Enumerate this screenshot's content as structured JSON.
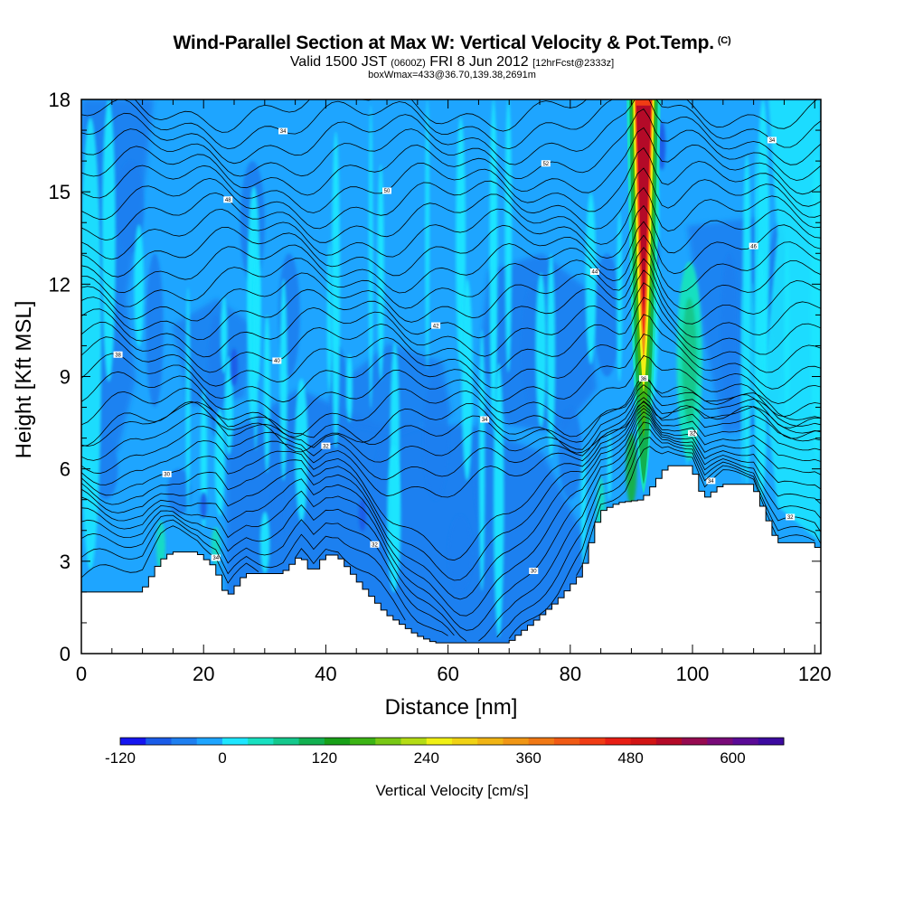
{
  "header": {
    "title": "Wind-Parallel Section at Max W: Vertical Velocity & Pot.Temp.",
    "title_mark": "(C)",
    "valid_prefix": "Valid 1500 JST",
    "valid_utc": "(0600Z)",
    "valid_date": "FRI 8 Jun 2012",
    "forecast": "[12hrFcst@2333z]",
    "box_info": "boxWmax=433@36.70,139.38,2691m"
  },
  "chart_data": {
    "type": "heatmap",
    "xlabel": "Distance [nm]",
    "ylabel": "Height [Kft MSL]",
    "xlim": [
      0,
      121
    ],
    "ylim": [
      0,
      18
    ],
    "x_ticks": [
      0,
      20,
      40,
      60,
      80,
      100,
      120
    ],
    "y_ticks": [
      0,
      3,
      6,
      9,
      12,
      15,
      18
    ],
    "colorbar": {
      "title": "Vertical Velocity [cm/s]",
      "tick_labels": [
        "-120",
        "0",
        "120",
        "240",
        "360",
        "480",
        "600"
      ],
      "tick_values": [
        -120,
        0,
        120,
        240,
        360,
        480,
        600
      ],
      "bin_edges": [
        -120,
        -90,
        -60,
        -30,
        0,
        30,
        60,
        90,
        120,
        150,
        180,
        210,
        240,
        270,
        300,
        330,
        360,
        390,
        420,
        450,
        480,
        510,
        540,
        570,
        600,
        630,
        660
      ],
      "colors": [
        "#1515f0",
        "#1a5ce8",
        "#1e7ff0",
        "#1ea5ff",
        "#1ee6ff",
        "#18e0c0",
        "#14c88c",
        "#12b050",
        "#18a018",
        "#3cb414",
        "#78c814",
        "#b4dc14",
        "#f0f014",
        "#f0d214",
        "#f0b414",
        "#f09614",
        "#f07814",
        "#f05a14",
        "#f03c14",
        "#e81e14",
        "#d21414",
        "#b40a28",
        "#960a50",
        "#780a78",
        "#5a0a96",
        "#3c0aa0"
      ]
    },
    "terrain_top_kft": [
      {
        "x": 0,
        "z": 2.0
      },
      {
        "x": 10,
        "z": 2.0
      },
      {
        "x": 13,
        "z": 3.0
      },
      {
        "x": 15,
        "z": 3.3
      },
      {
        "x": 19,
        "z": 3.3
      },
      {
        "x": 22,
        "z": 2.8
      },
      {
        "x": 24,
        "z": 1.8
      },
      {
        "x": 27,
        "z": 2.6
      },
      {
        "x": 33,
        "z": 2.6
      },
      {
        "x": 36,
        "z": 3.2
      },
      {
        "x": 38,
        "z": 2.6
      },
      {
        "x": 40,
        "z": 3.2
      },
      {
        "x": 42,
        "z": 3.2
      },
      {
        "x": 46,
        "z": 2.2
      },
      {
        "x": 50,
        "z": 1.3
      },
      {
        "x": 55,
        "z": 0.6
      },
      {
        "x": 58,
        "z": 0.35
      },
      {
        "x": 70,
        "z": 0.35
      },
      {
        "x": 74,
        "z": 1.0
      },
      {
        "x": 78,
        "z": 1.7
      },
      {
        "x": 82,
        "z": 2.6
      },
      {
        "x": 85,
        "z": 4.6
      },
      {
        "x": 88,
        "z": 4.9
      },
      {
        "x": 92,
        "z": 5.0
      },
      {
        "x": 96,
        "z": 6.1
      },
      {
        "x": 100,
        "z": 6.1
      },
      {
        "x": 102,
        "z": 5.0
      },
      {
        "x": 105,
        "z": 5.5
      },
      {
        "x": 110,
        "z": 5.5
      },
      {
        "x": 114,
        "z": 3.6
      },
      {
        "x": 120,
        "z": 3.6
      },
      {
        "x": 121,
        "z": 3.3
      }
    ],
    "isentrope_labels": [
      "34",
      "32",
      "30",
      "32",
      "30",
      "32",
      "34",
      "36",
      "38",
      "40",
      "42",
      "44",
      "46",
      "48",
      "50",
      "52"
    ]
  }
}
